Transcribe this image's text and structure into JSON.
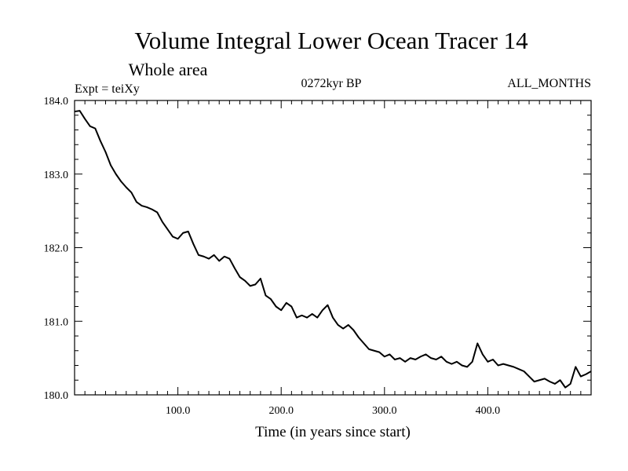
{
  "chart_data": {
    "type": "line",
    "title": "Volume Integral Lower Ocean Tracer 14",
    "subtitle": "Whole area",
    "annotations": {
      "left": "Expt = teiXy",
      "center": "0272kyr BP",
      "right": "ALL_MONTHS"
    },
    "xlabel": "Time (in years since start)",
    "ylabel": "",
    "xlim": [
      0,
      500
    ],
    "ylim": [
      180.0,
      184.0
    ],
    "x_ticks": [
      100,
      200,
      300,
      400
    ],
    "x_tick_labels": [
      "100.0",
      "200.0",
      "300.0",
      "400.0"
    ],
    "y_ticks": [
      180,
      181,
      182,
      183,
      184
    ],
    "y_tick_labels": [
      "180.0",
      "181.0",
      "182.0",
      "183.0",
      "184.0"
    ],
    "x_minor_step": 10,
    "y_minor_step": 0.2,
    "grid": false,
    "line_color": "#000000",
    "series": [
      {
        "x": [
          0,
          5,
          10,
          15,
          20,
          25,
          30,
          35,
          40,
          45,
          50,
          55,
          60,
          65,
          70,
          75,
          80,
          85,
          90,
          95,
          100,
          105,
          110,
          115,
          120,
          125,
          130,
          135,
          140,
          145,
          150,
          155,
          160,
          165,
          170,
          175,
          180,
          185,
          190,
          195,
          200,
          205,
          210,
          215,
          220,
          225,
          230,
          235,
          240,
          245,
          250,
          255,
          260,
          265,
          270,
          275,
          280,
          285,
          290,
          295,
          300,
          305,
          310,
          315,
          320,
          325,
          330,
          335,
          340,
          345,
          350,
          355,
          360,
          365,
          370,
          375,
          380,
          385,
          390,
          395,
          400,
          405,
          410,
          415,
          420,
          425,
          430,
          435,
          440,
          445,
          450,
          455,
          460,
          465,
          470,
          475,
          480,
          485,
          490,
          495,
          500
        ],
        "y": [
          183.85,
          183.86,
          183.75,
          183.65,
          183.62,
          183.45,
          183.3,
          183.12,
          183.0,
          182.9,
          182.82,
          182.75,
          182.62,
          182.57,
          182.55,
          182.52,
          182.48,
          182.35,
          182.25,
          182.15,
          182.12,
          182.2,
          182.22,
          182.05,
          181.9,
          181.88,
          181.85,
          181.9,
          181.82,
          181.88,
          181.85,
          181.72,
          181.6,
          181.55,
          181.48,
          181.5,
          181.58,
          181.35,
          181.3,
          181.2,
          181.15,
          181.25,
          181.2,
          181.05,
          181.08,
          181.05,
          181.1,
          181.05,
          181.15,
          181.22,
          181.05,
          180.95,
          180.9,
          180.95,
          180.88,
          180.78,
          180.7,
          180.62,
          180.6,
          180.58,
          180.52,
          180.55,
          180.48,
          180.5,
          180.45,
          180.5,
          180.48,
          180.52,
          180.55,
          180.5,
          180.48,
          180.52,
          180.45,
          180.42,
          180.45,
          180.4,
          180.38,
          180.45,
          180.7,
          180.55,
          180.45,
          180.48,
          180.4,
          180.42,
          180.4,
          180.38,
          180.35,
          180.32,
          180.25,
          180.18,
          180.2,
          180.22,
          180.18,
          180.15,
          180.2,
          180.1,
          180.15,
          180.38,
          180.25,
          180.28,
          180.32
        ]
      }
    ]
  }
}
